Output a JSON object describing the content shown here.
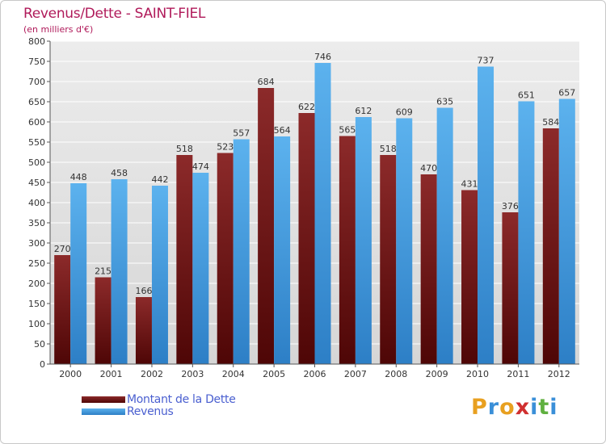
{
  "chart_data": {
    "type": "bar",
    "title": "Revenus/Dette - SAINT-FIEL",
    "subtitle": "(en milliers d'€)",
    "categories": [
      "2000",
      "2001",
      "2002",
      "2003",
      "2004",
      "2005",
      "2006",
      "2007",
      "2008",
      "2009",
      "2010",
      "2011",
      "2012"
    ],
    "series": [
      {
        "name": "Montant de la Dette",
        "color": "#7a1a1a",
        "values": [
          270,
          215,
          166,
          518,
          523,
          684,
          622,
          565,
          518,
          470,
          431,
          376,
          584
        ]
      },
      {
        "name": "Revenus",
        "color": "#4aa3e6",
        "values": [
          448,
          458,
          442,
          474,
          557,
          564,
          746,
          612,
          609,
          635,
          737,
          651,
          657
        ]
      }
    ],
    "ylim": [
      0,
      800
    ],
    "yticks": [
      0,
      50,
      100,
      150,
      200,
      250,
      300,
      350,
      400,
      450,
      500,
      550,
      600,
      650,
      700,
      750,
      800
    ],
    "grid": true,
    "legend": "bottom-left"
  },
  "logo": {
    "letters": [
      "P",
      "r",
      "o",
      "x",
      "i",
      "t",
      "i"
    ],
    "colors": [
      "#e8a020",
      "#3a8fd8",
      "#e8a020",
      "#d03030",
      "#3a8fd8",
      "#60b040",
      "#3a8fd8"
    ]
  }
}
